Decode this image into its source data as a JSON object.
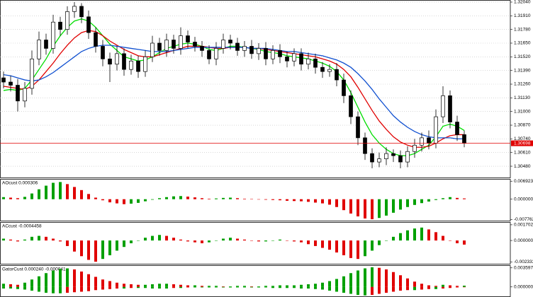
{
  "chart_data": [
    {
      "type": "candlestick",
      "open": [
        1.3132,
        1.3128,
        1.3125,
        1.311,
        1.3122,
        1.315,
        1.3168,
        1.316,
        1.3185,
        1.3178,
        1.3195,
        1.32,
        1.319,
        1.3175,
        1.3162,
        1.315,
        1.3145,
        1.3155,
        1.314,
        1.3148,
        1.3138,
        1.3152,
        1.3165,
        1.3158,
        1.3168,
        1.316,
        1.3172,
        1.3166,
        1.3162,
        1.3158,
        1.315,
        1.316,
        1.3168,
        1.3165,
        1.3158,
        1.3162,
        1.3155,
        1.316,
        1.315,
        1.3158,
        1.3152,
        1.3148,
        1.3155,
        1.3145,
        1.315,
        1.3142,
        1.3138,
        1.314,
        1.313,
        1.3115,
        1.3095,
        1.3075,
        1.306,
        1.3052,
        1.3055,
        1.306,
        1.3058,
        1.3052,
        1.3062,
        1.3068,
        1.3075,
        1.307,
        1.3095,
        1.3115,
        1.309,
        1.3078
      ],
      "high": [
        1.3138,
        1.3134,
        1.3131,
        1.3128,
        1.3158,
        1.3176,
        1.3174,
        1.3192,
        1.319,
        1.32,
        1.3204,
        1.3203,
        1.3196,
        1.318,
        1.3168,
        1.3156,
        1.3162,
        1.316,
        1.3154,
        1.3153,
        1.3158,
        1.3172,
        1.317,
        1.3174,
        1.3173,
        1.318,
        1.3177,
        1.3171,
        1.3167,
        1.3163,
        1.3166,
        1.3174,
        1.3173,
        1.317,
        1.3167,
        1.3168,
        1.3165,
        1.3166,
        1.3163,
        1.3164,
        1.3157,
        1.316,
        1.316,
        1.3156,
        1.3155,
        1.3147,
        1.3145,
        1.3146,
        1.3136,
        1.312,
        1.31,
        1.308,
        1.3065,
        1.3061,
        1.3066,
        1.3064,
        1.3063,
        1.3067,
        1.3074,
        1.308,
        1.3082,
        1.3102,
        1.3124,
        1.312,
        1.3096,
        1.3082
      ],
      "low": [
        1.3122,
        1.3119,
        1.31,
        1.3104,
        1.3116,
        1.3144,
        1.3154,
        1.3155,
        1.3172,
        1.3173,
        1.3189,
        1.3184,
        1.3169,
        1.3156,
        1.3143,
        1.3128,
        1.3139,
        1.3134,
        1.3135,
        1.3132,
        1.3133,
        1.3147,
        1.3153,
        1.3152,
        1.3155,
        1.3154,
        1.316,
        1.3157,
        1.3152,
        1.3145,
        1.3144,
        1.3155,
        1.3159,
        1.3153,
        1.3152,
        1.315,
        1.3149,
        1.3144,
        1.3145,
        1.3146,
        1.3142,
        1.3143,
        1.3139,
        1.314,
        1.3136,
        1.3132,
        1.3133,
        1.3124,
        1.3108,
        1.3088,
        1.3068,
        1.3054,
        1.3046,
        1.3047,
        1.3049,
        1.3052,
        1.3046,
        1.3047,
        1.3056,
        1.3062,
        1.3064,
        1.3065,
        1.3089,
        1.3084,
        1.3072,
        1.3066
      ],
      "close": [
        1.3128,
        1.3125,
        1.311,
        1.3122,
        1.315,
        1.3168,
        1.316,
        1.3185,
        1.3178,
        1.3195,
        1.32,
        1.319,
        1.3175,
        1.3162,
        1.315,
        1.3145,
        1.3155,
        1.314,
        1.3148,
        1.3138,
        1.3152,
        1.3165,
        1.3158,
        1.3168,
        1.316,
        1.3172,
        1.3166,
        1.3162,
        1.3158,
        1.315,
        1.316,
        1.3168,
        1.3165,
        1.3158,
        1.3162,
        1.3155,
        1.316,
        1.315,
        1.3158,
        1.3152,
        1.3148,
        1.3155,
        1.3145,
        1.315,
        1.3142,
        1.3138,
        1.314,
        1.313,
        1.3115,
        1.3095,
        1.3075,
        1.306,
        1.3052,
        1.3055,
        1.306,
        1.3058,
        1.3052,
        1.3062,
        1.3068,
        1.3075,
        1.307,
        1.3095,
        1.3115,
        1.309,
        1.3078,
        1.307
      ],
      "up_color": "#ffffff",
      "down_color": "#000000",
      "series": [
        {
          "color": "#00dd00",
          "values": [
            1.312,
            1.3121,
            1.312,
            1.3122,
            1.313,
            1.314,
            1.315,
            1.3162,
            1.3172,
            1.318,
            1.3186,
            1.3188,
            1.3186,
            1.318,
            1.3172,
            1.3164,
            1.3158,
            1.3152,
            1.315,
            1.3148,
            1.3149,
            1.3152,
            1.3156,
            1.316,
            1.3162,
            1.3164,
            1.3165,
            1.3164,
            1.3162,
            1.3159,
            1.3158,
            1.316,
            1.3162,
            1.3162,
            1.3161,
            1.316,
            1.3159,
            1.3157,
            1.3156,
            1.3155,
            1.3153,
            1.3152,
            1.3151,
            1.315,
            1.3148,
            1.3146,
            1.3143,
            1.3138,
            1.313,
            1.3118,
            1.3104,
            1.309,
            1.3078,
            1.307,
            1.3064,
            1.306,
            1.3058,
            1.3058,
            1.306,
            1.3064,
            1.3068,
            1.3076,
            1.3086,
            1.3088,
            1.3086,
            1.3082
          ]
        },
        {
          "color": "#e00000",
          "values": [
            1.3124,
            1.3123,
            1.3122,
            1.3121,
            1.3124,
            1.313,
            1.3138,
            1.3146,
            1.3155,
            1.3163,
            1.317,
            1.3175,
            1.3177,
            1.3176,
            1.3172,
            1.3167,
            1.3163,
            1.3159,
            1.3156,
            1.3153,
            1.3152,
            1.3152,
            1.3154,
            1.3156,
            1.3158,
            1.316,
            1.3162,
            1.3162,
            1.3162,
            1.3161,
            1.316,
            1.316,
            1.3161,
            1.3161,
            1.3161,
            1.316,
            1.316,
            1.3159,
            1.3158,
            1.3157,
            1.3156,
            1.3155,
            1.3154,
            1.3153,
            1.3152,
            1.315,
            1.3148,
            1.3145,
            1.314,
            1.3133,
            1.3123,
            1.3112,
            1.3101,
            1.3091,
            1.3083,
            1.3076,
            1.3071,
            1.3068,
            1.3066,
            1.3066,
            1.3067,
            1.307,
            1.3074,
            1.3077,
            1.3078,
            1.3078
          ]
        },
        {
          "color": "#1050d0",
          "values": [
            1.3135,
            1.3134,
            1.3132,
            1.313,
            1.3129,
            1.313,
            1.3133,
            1.3137,
            1.3142,
            1.3147,
            1.3152,
            1.3157,
            1.316,
            1.3162,
            1.3163,
            1.3163,
            1.3162,
            1.3161,
            1.316,
            1.3159,
            1.3158,
            1.3157,
            1.3157,
            1.3157,
            1.3158,
            1.3159,
            1.316,
            1.3161,
            1.3161,
            1.3161,
            1.3161,
            1.3161,
            1.3161,
            1.3161,
            1.3161,
            1.316,
            1.316,
            1.316,
            1.3159,
            1.3158,
            1.3157,
            1.3157,
            1.3156,
            1.3155,
            1.3154,
            1.3153,
            1.3151,
            1.3149,
            1.3146,
            1.3142,
            1.3136,
            1.3129,
            1.3121,
            1.3112,
            1.3104,
            1.3096,
            1.309,
            1.3085,
            1.3081,
            1.3078,
            1.3076,
            1.3075,
            1.3075,
            1.3075,
            1.3074,
            1.3074
          ]
        }
      ],
      "ylim": [
        1.30366,
        1.3206
      ],
      "yticks": [
        {
          "value": 1.3204,
          "label": "1.32040"
        },
        {
          "value": 1.3191,
          "label": "1.31910"
        },
        {
          "value": 1.3178,
          "label": "1.31780"
        },
        {
          "value": 1.3165,
          "label": "1.31650"
        },
        {
          "value": 1.3152,
          "label": "1.31520"
        },
        {
          "value": 1.3139,
          "label": "1.31390"
        },
        {
          "value": 1.3126,
          "label": "1.31260"
        },
        {
          "value": 1.3113,
          "label": "1.31130"
        },
        {
          "value": 1.31,
          "label": "1.31000"
        },
        {
          "value": 1.3087,
          "label": "1.30870"
        },
        {
          "value": 1.3074,
          "label": "1.30740"
        },
        {
          "value": 1.3061,
          "label": "1.30610"
        },
        {
          "value": 1.3048,
          "label": "1.30480"
        }
      ],
      "last_price": 1.30698,
      "last_price_color": "#e00000",
      "grid": true
    },
    {
      "type": "bar",
      "title": "AOcust 0.000306",
      "values": [
        0.0008,
        0.0006,
        0.0004,
        0.0009,
        0.0022,
        0.0038,
        0.0052,
        0.0063,
        0.0066,
        0.0058,
        0.0047,
        0.0035,
        0.002,
        0.0006,
        -0.0004,
        -0.0012,
        -0.0016,
        -0.0019,
        -0.0017,
        -0.0014,
        -0.0008,
        -0.0002,
        0.0004,
        0.0008,
        0.0011,
        0.0012,
        0.001,
        0.0007,
        0.0004,
        0.0002,
        0.0003,
        0.0005,
        0.0006,
        0.0004,
        0.0002,
        0.0001,
        -0.0001,
        -0.0002,
        -0.0003,
        -0.0004,
        -0.0006,
        -0.0007,
        -0.0008,
        -0.001,
        -0.0013,
        -0.0016,
        -0.0021,
        -0.003,
        -0.0042,
        -0.0055,
        -0.0066,
        -0.0074,
        -0.0077,
        -0.0072,
        -0.0063,
        -0.0052,
        -0.004,
        -0.003,
        -0.0022,
        -0.0015,
        -0.0009,
        -0.0003,
        0.0004,
        0.0008,
        0.0005,
        0.000306
      ],
      "up_color": "#00a000",
      "down_color": "#e00000",
      "ylim": [
        -0.0085,
        0.0078
      ],
      "yticks": [
        {
          "value": 0.006923,
          "label": "0.006923"
        },
        {
          "value": 0,
          "label": "0.000000"
        },
        {
          "value": -0.007762,
          "label": "-0.007762"
        }
      ],
      "grid": false
    },
    {
      "type": "bar",
      "title": "ACcust -0.0004458",
      "values": [
        0.0002,
        0.0001,
        -0.0001,
        0.0001,
        0.0004,
        0.0005,
        0.0004,
        0.0002,
        -0.0001,
        -0.0006,
        -0.0012,
        -0.0017,
        -0.0021,
        -0.0023,
        -0.002,
        -0.0016,
        -0.0011,
        -0.0007,
        -0.0003,
        0.0,
        0.0003,
        0.0005,
        0.0006,
        0.0005,
        0.0003,
        0.0001,
        -0.0001,
        -0.0002,
        -0.0003,
        -0.0002,
        0.0,
        0.0002,
        0.0003,
        0.0002,
        0.0001,
        0.0,
        -0.0001,
        -0.0001,
        0.0,
        0.0001,
        0.0,
        -0.0001,
        -0.0002,
        -0.0004,
        -0.0006,
        -0.0008,
        -0.001,
        -0.0013,
        -0.0016,
        -0.0019,
        -0.002,
        -0.0017,
        -0.0011,
        -0.0005,
        0.0,
        0.0004,
        0.0008,
        0.0011,
        0.0013,
        0.0014,
        0.0012,
        0.0009,
        0.0005,
        0.0,
        -0.0003,
        -0.0004458
      ],
      "up_color": "#00a000",
      "down_color": "#e00000",
      "ylim": [
        -0.0026,
        0.002
      ],
      "yticks": [
        {
          "value": 0.0017027,
          "label": "0.0017027"
        },
        {
          "value": 0,
          "label": "0.0000000"
        },
        {
          "value": -0.002333,
          "label": "-0.0023330"
        }
      ],
      "grid": false
    },
    {
      "type": "gator",
      "title": "GatorCust 0.000240 -0.000041",
      "series": [
        {
          "values": [
            0.0006,
            0.0005,
            0.0004,
            0.0008,
            0.0014,
            0.002,
            0.0026,
            0.0031,
            0.0034,
            0.0035,
            0.0033,
            0.0029,
            0.0024,
            0.0019,
            0.0014,
            0.0011,
            0.0008,
            0.0006,
            0.0005,
            0.0004,
            0.0004,
            0.0005,
            0.0006,
            0.0006,
            0.0005,
            0.0004,
            0.0003,
            0.0003,
            0.0002,
            0.0002,
            0.0002,
            0.0001,
            0.0001,
            0.0002,
            0.0002,
            0.0001,
            0.0001,
            0.0002,
            0.0002,
            0.0003,
            0.0003,
            0.0003,
            0.0004,
            0.0005,
            0.0006,
            0.0008,
            0.0011,
            0.0015,
            0.002,
            0.0026,
            0.0031,
            0.0035,
            0.0037,
            0.0036,
            0.0033,
            0.0028,
            0.0022,
            0.0016,
            0.001,
            0.0006,
            0.0003,
            0.0002,
            0.0004,
            0.0003,
            0.0002,
            0.00024
          ]
        },
        {
          "values": [
            -0.0003,
            -0.0003,
            -0.0004,
            -0.0005,
            -0.0007,
            -0.0009,
            -0.0011,
            -0.0012,
            -0.0012,
            -0.0011,
            -0.001,
            -0.0009,
            -0.0008,
            -0.0006,
            -0.0005,
            -0.0004,
            -0.0003,
            -0.0003,
            -0.0002,
            -0.0002,
            -0.0002,
            -0.0003,
            -0.0003,
            -0.0003,
            -0.0002,
            -0.0002,
            -0.0001,
            -0.0001,
            -0.0001,
            -0.0001,
            -0.0001,
            -0.0001,
            -0.0001,
            -0.0001,
            -0.0001,
            -0.0001,
            -0.0001,
            -0.0001,
            -0.0002,
            -0.0002,
            -0.0002,
            -0.0002,
            -0.0003,
            -0.0003,
            -0.0004,
            -0.0005,
            -0.0007,
            -0.0009,
            -0.0011,
            -0.0013,
            -0.0015,
            -0.0016,
            -0.0015,
            -0.0013,
            -0.0011,
            -0.0009,
            -0.0007,
            -0.0006,
            -0.0006,
            -0.0005,
            -0.0004,
            -0.0004,
            -0.0003,
            -0.0002,
            -0.0001,
            -4.1e-05
          ]
        }
      ],
      "up_color": "#00a000",
      "down_color": "#e00000",
      "ylim": [
        -0.0019,
        0.0041
      ],
      "yticks": [
        {
          "value": 0.003597,
          "label": "0.003597"
        },
        {
          "value": 0,
          "label": "0.000000"
        }
      ],
      "grid": false
    }
  ]
}
